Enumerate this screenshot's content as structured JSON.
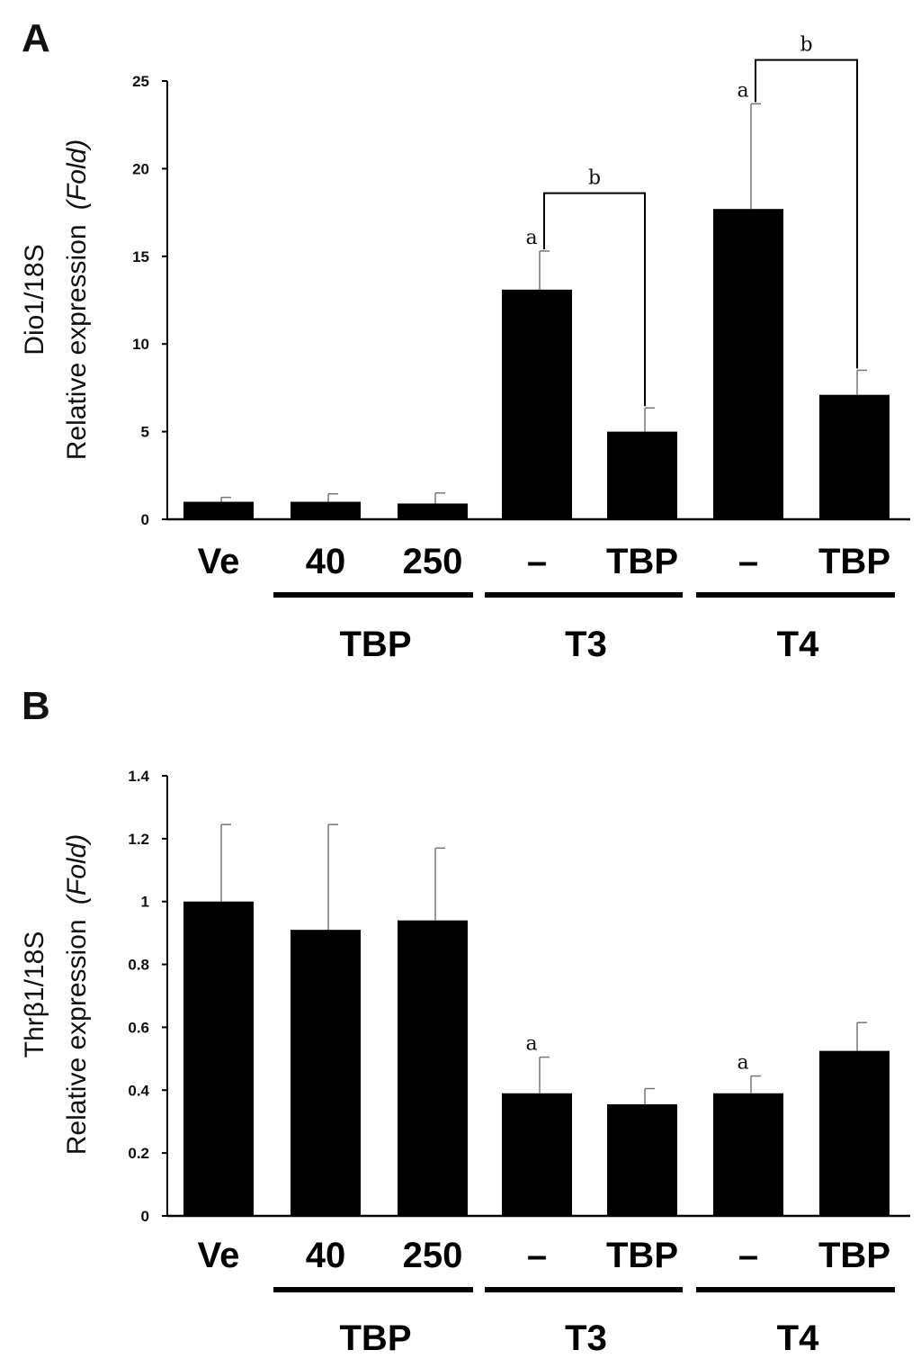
{
  "figure": {
    "panels": [
      {
        "letter": "A",
        "ylabel_line1": "Dio1/18S",
        "ylabel_line2": "Relative expression",
        "ylabel_unit": "(Fold)"
      },
      {
        "letter": "B",
        "ylabel_line1": "Thrβ1/18S",
        "ylabel_line2": "Relative expression",
        "ylabel_unit": "(Fold)"
      }
    ]
  },
  "chart_data": [
    {
      "type": "bar",
      "panel": "A",
      "title": "",
      "xlabel": "",
      "ylabel": "Dio1/18S Relative expression (Fold)",
      "ylim": [
        0,
        25
      ],
      "yticks": [
        "0",
        "5",
        "10",
        "15",
        "20",
        "25"
      ],
      "categories": [
        "Ve",
        "40",
        "250",
        "–",
        "TBP",
        "–",
        "TBP"
      ],
      "values": [
        1.0,
        1.0,
        0.9,
        13.1,
        5.0,
        17.7,
        7.1
      ],
      "errors": [
        0.25,
        0.45,
        0.6,
        2.2,
        1.35,
        6.0,
        1.4
      ],
      "groups": [
        {
          "label": "TBP",
          "from": 1,
          "to": 2
        },
        {
          "label": "T3",
          "from": 3,
          "to": 4
        },
        {
          "label": "T4",
          "from": 5,
          "to": 6
        }
      ],
      "annotations": [
        {
          "text": "a",
          "bar": 3
        },
        {
          "text": "a",
          "bar": 5
        }
      ],
      "brackets": [
        {
          "text": "b",
          "from": 3,
          "to": 4,
          "y": 18.6
        },
        {
          "text": "b",
          "from": 5,
          "to": 6,
          "y": 26.2
        }
      ]
    },
    {
      "type": "bar",
      "panel": "B",
      "title": "",
      "xlabel": "",
      "ylabel": "Thrβ1/18S Relative expression (Fold)",
      "ylim": [
        0,
        1.4
      ],
      "yticks": [
        "0",
        "0.2",
        "0.4",
        "0.6",
        "0.8",
        "1",
        "1.2",
        "1.4"
      ],
      "categories": [
        "Ve",
        "40",
        "250",
        "–",
        "TBP",
        "–",
        "TBP"
      ],
      "values": [
        1.0,
        0.91,
        0.94,
        0.39,
        0.355,
        0.39,
        0.525
      ],
      "errors": [
        0.245,
        0.335,
        0.23,
        0.115,
        0.05,
        0.055,
        0.09
      ],
      "groups": [
        {
          "label": "TBP",
          "from": 1,
          "to": 2
        },
        {
          "label": "T3",
          "from": 3,
          "to": 4
        },
        {
          "label": "T4",
          "from": 5,
          "to": 6
        }
      ],
      "annotations": [
        {
          "text": "a",
          "bar": 3
        },
        {
          "text": "a",
          "bar": 5
        }
      ],
      "brackets": []
    }
  ]
}
